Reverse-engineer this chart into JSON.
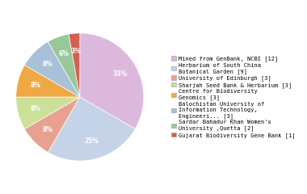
{
  "labels": [
    "Mined from GenBank, NCBI [12]",
    "Herbarium of South China\nBotanical Garden [9]",
    "University of Edinburgh [3]",
    "Sharjah Seed Bank & Herbarium [3]",
    "Centre for Biodiversity\nGenomics [3]",
    "Balochistan University of\nInformation Technology,\nEngineeri... [3]",
    "Sardar Bahadur Khan Women's\nUniversity ,Quetta [2]",
    "Gujarat Biodiversity Gene Bank [1]"
  ],
  "values": [
    12,
    9,
    3,
    3,
    3,
    3,
    2,
    1
  ],
  "colors": [
    "#ddb8dd",
    "#c5d3e8",
    "#e8a090",
    "#cce098",
    "#f0a844",
    "#a8c0d8",
    "#98c898",
    "#d46050"
  ],
  "startangle": 90,
  "figsize": [
    3.8,
    2.4
  ],
  "dpi": 100
}
